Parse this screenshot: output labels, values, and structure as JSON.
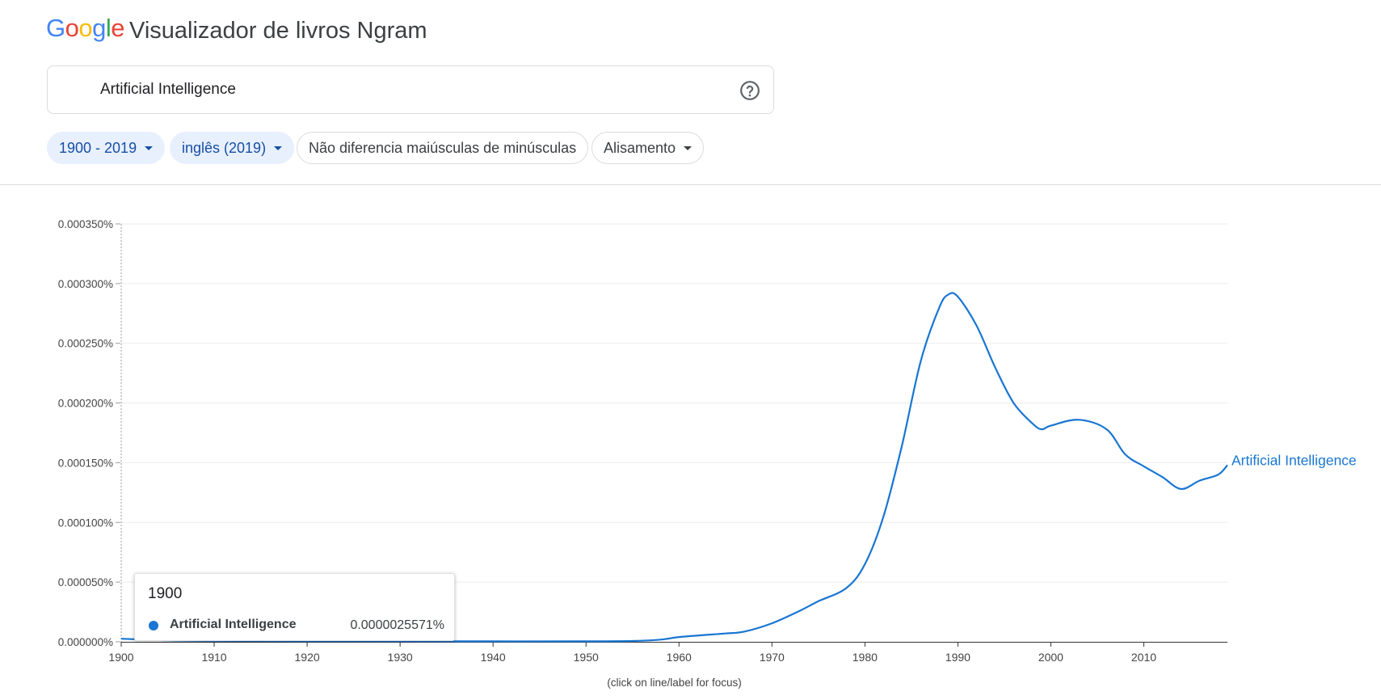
{
  "header": {
    "logo_letters": [
      {
        "char": "G",
        "color": "#4285F4"
      },
      {
        "char": "o",
        "color": "#EA4335"
      },
      {
        "char": "o",
        "color": "#FBBC05"
      },
      {
        "char": "g",
        "color": "#4285F4"
      },
      {
        "char": "l",
        "color": "#34A853"
      },
      {
        "char": "e",
        "color": "#EA4335"
      }
    ],
    "app_title": "Visualizador de livros Ngram",
    "help_icon": "help-circle-icon"
  },
  "search": {
    "value": "Artificial Intelligence"
  },
  "filters": {
    "year_range": "1900 - 2019",
    "corpus": "inglês (2019)",
    "case": "Não diferencia maiúsculas de minúsculas",
    "smoothing": "Alisamento"
  },
  "tooltip": {
    "year": "1900",
    "series_name": "Artificial Intelligence",
    "value": "0.0000025571%"
  },
  "chart_data": {
    "type": "line",
    "note": "(click on line/label for focus)",
    "xlim": [
      1900,
      2019
    ],
    "ylim": [
      0,
      0.00035
    ],
    "x_ticks": [
      "1900",
      "1910",
      "1920",
      "1930",
      "1940",
      "1950",
      "1960",
      "1970",
      "1980",
      "1990",
      "2000",
      "2010"
    ],
    "y_ticks": [
      "0.000000%",
      "0.000050%",
      "0.000100%",
      "0.000150%",
      "0.000200%",
      "0.000250%",
      "0.000300%",
      "0.000350%"
    ],
    "grid": true,
    "hover_year": 1900,
    "series": [
      {
        "name": "Artificial Intelligence",
        "color": "#1976d2",
        "points": [
          [
            1900,
            2.6e-06
          ],
          [
            1905,
            1.2e-06
          ],
          [
            1910,
            8e-07
          ],
          [
            1920,
            6e-07
          ],
          [
            1930,
            5e-07
          ],
          [
            1940,
            4e-07
          ],
          [
            1950,
            4e-07
          ],
          [
            1955,
            7e-07
          ],
          [
            1958,
            1.8e-06
          ],
          [
            1960,
            4e-06
          ],
          [
            1963,
            5.8e-06
          ],
          [
            1965,
            7e-06
          ],
          [
            1967,
            8.5e-06
          ],
          [
            1970,
            1.55e-05
          ],
          [
            1973,
            2.6e-05
          ],
          [
            1975,
            3.4e-05
          ],
          [
            1978,
            4.5e-05
          ],
          [
            1980,
            6.5e-05
          ],
          [
            1982,
            0.000105
          ],
          [
            1984,
            0.000165
          ],
          [
            1986,
            0.000235
          ],
          [
            1988,
            0.00028
          ],
          [
            1989,
            0.000291
          ],
          [
            1990,
            0.000289
          ],
          [
            1992,
            0.000265
          ],
          [
            1994,
            0.00023
          ],
          [
            1996,
            0.0002
          ],
          [
            1998,
            0.000183
          ],
          [
            1999,
            0.000178
          ],
          [
            2000,
            0.000181
          ],
          [
            2003,
            0.000186
          ],
          [
            2006,
            0.000178
          ],
          [
            2008,
            0.000157
          ],
          [
            2010,
            0.000147
          ],
          [
            2012,
            0.000138
          ],
          [
            2014,
            0.000128
          ],
          [
            2016,
            0.000135
          ],
          [
            2018,
            0.00014
          ],
          [
            2019,
            0.000148
          ]
        ]
      }
    ]
  }
}
